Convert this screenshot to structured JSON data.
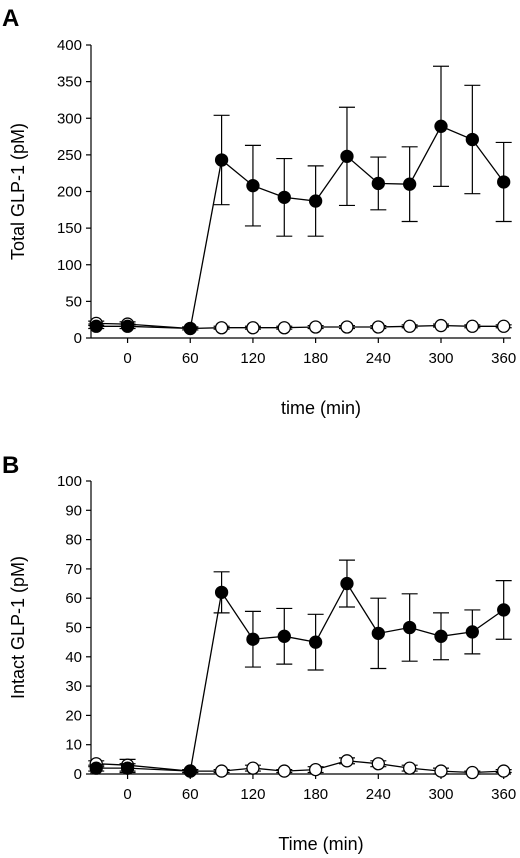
{
  "chart_data": [
    {
      "type": "line",
      "panel_label": "A",
      "xlabel": "time (min)",
      "ylabel": "Total GLP-1 (pM)",
      "xlim": [
        -35,
        367
      ],
      "ylim": [
        0,
        400
      ],
      "xticks": [
        0,
        60,
        120,
        180,
        240,
        300,
        360
      ],
      "yticks": [
        0,
        50,
        100,
        150,
        200,
        250,
        300,
        350,
        400
      ],
      "grid": false,
      "legend": "none",
      "series": [
        {
          "marker": "filled-circle",
          "color": "#000000",
          "x": [
            -30,
            0,
            60,
            90,
            120,
            150,
            180,
            210,
            240,
            270,
            300,
            330,
            360
          ],
          "y": [
            16,
            16,
            13,
            243,
            208,
            192,
            187,
            248,
            211,
            210,
            289,
            271,
            213
          ],
          "error": [
            3,
            3,
            2,
            61,
            55,
            53,
            48,
            67,
            36,
            51,
            82,
            74,
            54
          ]
        },
        {
          "marker": "open-circle",
          "color": "#000000",
          "x": [
            -30,
            0,
            60,
            90,
            120,
            150,
            180,
            210,
            240,
            270,
            300,
            330,
            360
          ],
          "y": [
            20,
            19,
            13,
            14,
            14,
            14,
            15,
            15,
            15,
            16,
            17,
            16,
            16
          ],
          "error": [
            3,
            3,
            2,
            2,
            2,
            2,
            2,
            2,
            2,
            2,
            2,
            2,
            2
          ]
        }
      ]
    },
    {
      "type": "line",
      "panel_label": "B",
      "xlabel": "Time (min)",
      "ylabel": "Intact GLP-1 (pM)",
      "xlim": [
        -35,
        367
      ],
      "ylim": [
        0,
        100
      ],
      "xticks": [
        0,
        60,
        120,
        180,
        240,
        300,
        360
      ],
      "yticks": [
        0,
        10,
        20,
        30,
        40,
        50,
        60,
        70,
        80,
        90,
        100
      ],
      "grid": false,
      "legend": "none",
      "series": [
        {
          "marker": "filled-circle",
          "color": "#000000",
          "x": [
            -30,
            0,
            60,
            90,
            120,
            150,
            180,
            210,
            240,
            270,
            300,
            330,
            360
          ],
          "y": [
            2,
            2,
            1,
            62,
            46,
            47,
            45,
            65,
            48,
            50,
            47,
            48.5,
            56
          ],
          "error": [
            1,
            1.5,
            0.5,
            7,
            9.5,
            9.5,
            9.5,
            8,
            12,
            11.5,
            8,
            7.5,
            10
          ]
        },
        {
          "marker": "open-circle",
          "color": "#000000",
          "x": [
            -30,
            0,
            60,
            90,
            120,
            150,
            180,
            210,
            240,
            270,
            300,
            330,
            360
          ],
          "y": [
            3.5,
            3,
            1,
            1,
            2,
            1,
            1.5,
            4.5,
            3.5,
            2,
            1,
            0.5,
            1
          ],
          "error": [
            1,
            2,
            0.5,
            0.5,
            1,
            0.5,
            1,
            1,
            1,
            1,
            1,
            0.5,
            0.5
          ]
        }
      ]
    }
  ]
}
